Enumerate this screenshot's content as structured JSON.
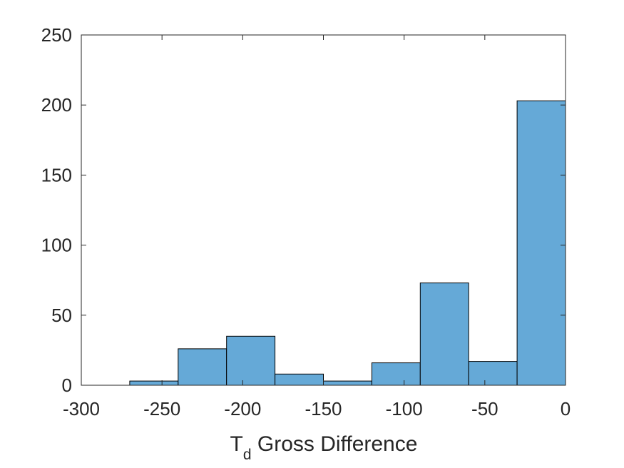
{
  "chart_data": {
    "type": "bar",
    "subtype": "histogram",
    "bins": [
      {
        "start": -270,
        "end": -240,
        "count": 3
      },
      {
        "start": -240,
        "end": -210,
        "count": 26
      },
      {
        "start": -210,
        "end": -180,
        "count": 35
      },
      {
        "start": -180,
        "end": -150,
        "count": 8
      },
      {
        "start": -150,
        "end": -120,
        "count": 3
      },
      {
        "start": -120,
        "end": -90,
        "count": 16
      },
      {
        "start": -90,
        "end": -60,
        "count": 73
      },
      {
        "start": -60,
        "end": -30,
        "count": 17
      },
      {
        "start": -30,
        "end": 0,
        "count": 203
      }
    ],
    "xlim": [
      -300,
      0
    ],
    "ylim": [
      0,
      250
    ],
    "xticks": [
      -300,
      -250,
      -200,
      -150,
      -100,
      -50,
      0
    ],
    "yticks": [
      0,
      50,
      100,
      150,
      200,
      250
    ],
    "xlabel_main": "T",
    "xlabel_subscript": "d",
    "xlabel_rest": " Gross Difference",
    "ylabel": "",
    "title": "",
    "grid": false,
    "bar_color": "#65a9d7",
    "edge_color": "#000000"
  }
}
